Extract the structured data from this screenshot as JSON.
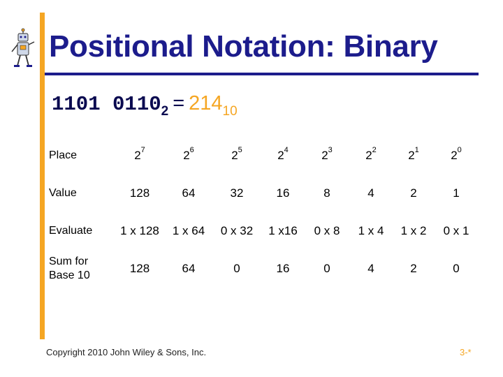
{
  "slide": {
    "title": "Positional Notation:  Binary",
    "equation": {
      "binary": "1101 0110",
      "binary_base": "2",
      "equals": "=",
      "decimal": "214",
      "decimal_base": "10"
    },
    "table": {
      "row_labels": [
        "Place",
        "Value",
        "Evaluate",
        "Sum for Base 10"
      ],
      "place_bases": [
        "2",
        "2",
        "2",
        "2",
        "2",
        "2",
        "2",
        "2"
      ],
      "place_exponents": [
        "7",
        "6",
        "5",
        "4",
        "3",
        "2",
        "1",
        "0"
      ],
      "values": [
        "128",
        "64",
        "32",
        "16",
        "8",
        "4",
        "2",
        "1"
      ],
      "evaluate": [
        "1 x 128",
        "1 x 64",
        "0 x 32",
        "1 x16",
        "0 x 8",
        "1 x 4",
        "1 x 2",
        "0 x 1"
      ],
      "sums": [
        "128",
        "64",
        "0",
        "16",
        "0",
        "4",
        "2",
        "0"
      ]
    },
    "footer": {
      "copyright": "Copyright 2010 John Wiley & Sons, Inc.",
      "slide_number": "3-*"
    },
    "colors": {
      "title": "#1c1c8c",
      "accent": "#f5a623",
      "rule": "#1c1c8c"
    },
    "logo_icon": "robot-mascot-icon"
  }
}
